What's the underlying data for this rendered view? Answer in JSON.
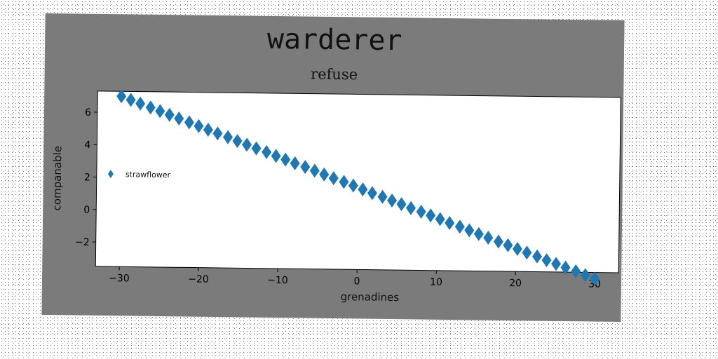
{
  "chart_data": {
    "type": "scatter",
    "title": "warderer",
    "subtitle": "refuse",
    "xlabel": "grenadines",
    "ylabel": "companable",
    "xlim": [
      -33,
      33
    ],
    "ylim": [
      -3.5,
      7.3
    ],
    "xticks": [
      -30,
      -20,
      -10,
      0,
      10,
      20,
      30
    ],
    "yticks": [
      -2,
      0,
      2,
      4,
      6
    ],
    "xtick_labels": [
      "−30",
      "−20",
      "−10",
      "0",
      "10",
      "20",
      "30"
    ],
    "ytick_labels": [
      "−2",
      "0",
      "2",
      "4",
      "6"
    ],
    "legend_position": "center-left",
    "grid": false,
    "marker": "diamond",
    "color": "#1f77b4",
    "series": [
      {
        "name": "strawflower",
        "x": [
          -30,
          -28.8,
          -27.6,
          -26.3,
          -25.1,
          -23.9,
          -22.7,
          -21.4,
          -20.2,
          -19,
          -17.8,
          -16.5,
          -15.3,
          -14.1,
          -12.9,
          -11.6,
          -10.4,
          -9.2,
          -8,
          -6.7,
          -5.5,
          -4.3,
          -3.1,
          -1.8,
          -0.6,
          0.6,
          1.8,
          3.1,
          4.3,
          5.5,
          6.7,
          8,
          9.2,
          10.4,
          11.6,
          12.9,
          14.1,
          15.3,
          16.5,
          17.8,
          19,
          20.2,
          21.4,
          22.7,
          23.9,
          25.1,
          26.3,
          27.6,
          28.8,
          30
        ],
        "y": [
          7,
          6.78,
          6.56,
          6.33,
          6.11,
          5.89,
          5.67,
          5.44,
          5.22,
          5,
          4.78,
          4.56,
          4.33,
          4.11,
          3.89,
          3.67,
          3.44,
          3.22,
          3,
          2.78,
          2.56,
          2.33,
          2.11,
          1.89,
          1.67,
          1.44,
          1.22,
          1,
          0.78,
          0.56,
          0.33,
          0.11,
          -0.11,
          -0.33,
          -0.56,
          -0.78,
          -1,
          -1.22,
          -1.44,
          -1.67,
          -1.89,
          -2.11,
          -2.33,
          -2.56,
          -2.78,
          -3,
          -3.22,
          -3.44,
          -3.67,
          -3.89
        ]
      }
    ]
  }
}
